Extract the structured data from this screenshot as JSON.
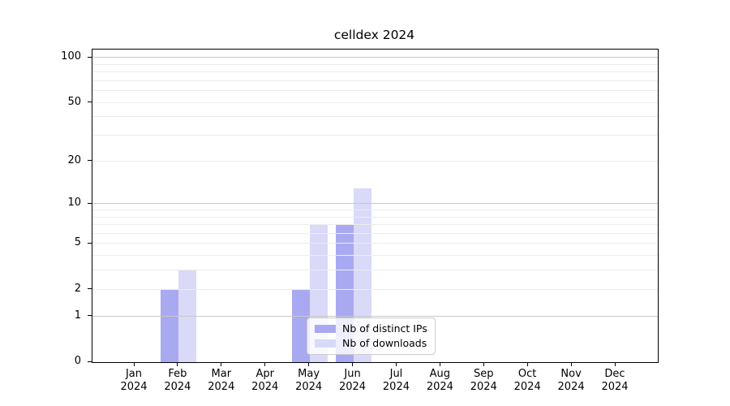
{
  "chart_data": {
    "type": "bar",
    "title": "celldex 2024",
    "categories": [
      "Jan 2024",
      "Feb 2024",
      "Mar 2024",
      "Apr 2024",
      "May 2024",
      "Jun 2024",
      "Jul 2024",
      "Aug 2024",
      "Sep 2024",
      "Oct 2024",
      "Nov 2024",
      "Dec 2024"
    ],
    "series": [
      {
        "name": "Nb of distinct IPs",
        "color": "#a9a9f2",
        "values": [
          0,
          2,
          0,
          0,
          2,
          7,
          0,
          0,
          0,
          0,
          0,
          0
        ]
      },
      {
        "name": "Nb of downloads",
        "color": "#d9d9f8",
        "values": [
          0,
          3,
          0,
          0,
          7,
          13,
          0,
          0,
          0,
          0,
          0,
          0
        ]
      }
    ],
    "xlabel": "",
    "ylabel": "",
    "yscale": "log1p",
    "ylim": [
      0,
      100
    ],
    "ytick_labels": [
      0,
      1,
      2,
      5,
      10,
      20,
      50,
      100
    ],
    "major_gridlines": [
      1,
      10,
      100
    ],
    "minor_gridlines": [
      2,
      3,
      4,
      5,
      6,
      7,
      8,
      9,
      20,
      30,
      40,
      50,
      60,
      70,
      80,
      90
    ],
    "grid": true,
    "legend_position": "lower center"
  }
}
